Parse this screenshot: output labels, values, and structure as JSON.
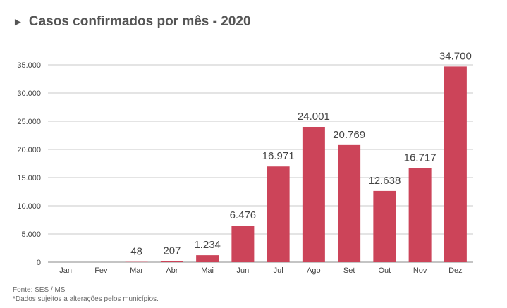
{
  "title": {
    "marker": "►",
    "text": "Casos confirmados por mês - 2020"
  },
  "footer": {
    "source": "Fonte: SES / MS",
    "note": "*Dados sujeitos a alterações pelos municípios."
  },
  "colors": {
    "bar": "#cc4459",
    "grid": "#c8c8c8",
    "axis_text": "#444444",
    "label_text": "#444444"
  },
  "chart_data": {
    "type": "bar",
    "categories": [
      "Jan",
      "Fev",
      "Mar",
      "Abr",
      "Mai",
      "Jun",
      "Jul",
      "Ago",
      "Set",
      "Out",
      "Nov",
      "Dez"
    ],
    "values": [
      0,
      0,
      48,
      207,
      1234,
      6476,
      16971,
      24001,
      20769,
      12638,
      16717,
      34700
    ],
    "data_labels": [
      "",
      "",
      "48",
      "207",
      "1.234",
      "6.476",
      "16.971",
      "24.001",
      "20.769",
      "12.638",
      "16.717",
      "34.700"
    ],
    "yticks": [
      0,
      5000,
      10000,
      15000,
      20000,
      25000,
      30000,
      35000
    ],
    "ytick_labels": [
      "0",
      "5.000",
      "10.000",
      "15.000",
      "20.000",
      "25.000",
      "30.000",
      "35.000"
    ],
    "ylim": [
      0,
      35000
    ],
    "grid": true,
    "legend": "none"
  }
}
